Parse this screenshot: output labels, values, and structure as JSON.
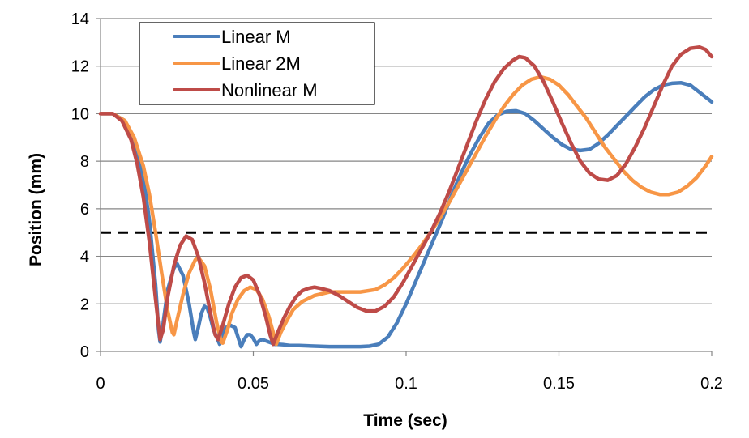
{
  "chart_data": {
    "type": "line",
    "title": "",
    "xlabel": "Time (sec)",
    "ylabel": "Position (mm)",
    "xlim": [
      0,
      0.2
    ],
    "ylim": [
      0,
      14
    ],
    "xticks": [
      0,
      0.05,
      0.1,
      0.15,
      0.2
    ],
    "xtick_labels": [
      "0",
      "0.05",
      "0.1",
      "0.15",
      "0.2"
    ],
    "yticks": [
      0,
      2,
      4,
      6,
      8,
      10,
      12,
      14
    ],
    "ytick_labels": [
      "0",
      "2",
      "4",
      "6",
      "8",
      "10",
      "12",
      "14"
    ],
    "grid": "horizontal",
    "legend_position": "top-left",
    "reference_line": {
      "y": 5,
      "style": "dashed",
      "color": "#000000"
    },
    "series": [
      {
        "name": "Linear M",
        "color": "#4A7EBB",
        "points": [
          [
            0,
            10
          ],
          [
            0.004,
            10
          ],
          [
            0.008,
            9.7
          ],
          [
            0.011,
            8.8
          ],
          [
            0.014,
            7.3
          ],
          [
            0.016,
            5.5
          ],
          [
            0.018,
            2.8
          ],
          [
            0.019,
            0.9
          ],
          [
            0.0195,
            0.4
          ],
          [
            0.0205,
            1.2
          ],
          [
            0.022,
            2.6
          ],
          [
            0.024,
            3.5
          ],
          [
            0.025,
            3.7
          ],
          [
            0.027,
            3.2
          ],
          [
            0.029,
            2.0
          ],
          [
            0.0305,
            0.8
          ],
          [
            0.031,
            0.5
          ],
          [
            0.032,
            1.0
          ],
          [
            0.033,
            1.6
          ],
          [
            0.034,
            1.9
          ],
          [
            0.035,
            1.8
          ],
          [
            0.036,
            1.4
          ],
          [
            0.037,
            0.9
          ],
          [
            0.038,
            0.6
          ],
          [
            0.039,
            0.3
          ],
          [
            0.04,
            0.7
          ],
          [
            0.041,
            1.0
          ],
          [
            0.0425,
            1.1
          ],
          [
            0.044,
            1.0
          ],
          [
            0.045,
            0.6
          ],
          [
            0.046,
            0.2
          ],
          [
            0.047,
            0.5
          ],
          [
            0.048,
            0.7
          ],
          [
            0.049,
            0.7
          ],
          [
            0.05,
            0.55
          ],
          [
            0.051,
            0.3
          ],
          [
            0.052,
            0.45
          ],
          [
            0.053,
            0.5
          ],
          [
            0.054,
            0.45
          ],
          [
            0.055,
            0.4
          ],
          [
            0.056,
            0.35
          ],
          [
            0.057,
            0.3
          ],
          [
            0.058,
            0.3
          ],
          [
            0.06,
            0.28
          ],
          [
            0.062,
            0.25
          ],
          [
            0.065,
            0.25
          ],
          [
            0.07,
            0.22
          ],
          [
            0.075,
            0.2
          ],
          [
            0.08,
            0.2
          ],
          [
            0.085,
            0.2
          ],
          [
            0.088,
            0.22
          ],
          [
            0.091,
            0.3
          ],
          [
            0.094,
            0.6
          ],
          [
            0.097,
            1.2
          ],
          [
            0.1,
            2.0
          ],
          [
            0.103,
            2.9
          ],
          [
            0.106,
            3.8
          ],
          [
            0.109,
            4.7
          ],
          [
            0.112,
            5.6
          ],
          [
            0.115,
            6.6
          ],
          [
            0.118,
            7.5
          ],
          [
            0.121,
            8.3
          ],
          [
            0.124,
            9.0
          ],
          [
            0.127,
            9.6
          ],
          [
            0.13,
            9.95
          ],
          [
            0.133,
            10.1
          ],
          [
            0.136,
            10.12
          ],
          [
            0.139,
            10.0
          ],
          [
            0.142,
            9.7
          ],
          [
            0.145,
            9.35
          ],
          [
            0.148,
            9.0
          ],
          [
            0.151,
            8.7
          ],
          [
            0.154,
            8.5
          ],
          [
            0.157,
            8.45
          ],
          [
            0.16,
            8.5
          ],
          [
            0.163,
            8.75
          ],
          [
            0.166,
            9.1
          ],
          [
            0.169,
            9.5
          ],
          [
            0.172,
            9.9
          ],
          [
            0.175,
            10.3
          ],
          [
            0.178,
            10.7
          ],
          [
            0.181,
            11.0
          ],
          [
            0.184,
            11.2
          ],
          [
            0.187,
            11.28
          ],
          [
            0.19,
            11.3
          ],
          [
            0.193,
            11.2
          ],
          [
            0.196,
            10.9
          ],
          [
            0.2,
            10.5
          ]
        ]
      },
      {
        "name": "Linear 2M",
        "color": "#F79646",
        "points": [
          [
            0,
            10
          ],
          [
            0.004,
            10
          ],
          [
            0.008,
            9.7
          ],
          [
            0.011,
            9.0
          ],
          [
            0.014,
            7.8
          ],
          [
            0.016,
            6.6
          ],
          [
            0.018,
            5.0
          ],
          [
            0.02,
            3.3
          ],
          [
            0.022,
            1.7
          ],
          [
            0.0235,
            0.8
          ],
          [
            0.024,
            0.7
          ],
          [
            0.025,
            1.3
          ],
          [
            0.027,
            2.4
          ],
          [
            0.029,
            3.3
          ],
          [
            0.031,
            3.85
          ],
          [
            0.032,
            3.95
          ],
          [
            0.034,
            3.6
          ],
          [
            0.036,
            2.6
          ],
          [
            0.038,
            1.2
          ],
          [
            0.0395,
            0.4
          ],
          [
            0.04,
            0.35
          ],
          [
            0.0415,
            0.9
          ],
          [
            0.043,
            1.6
          ],
          [
            0.045,
            2.2
          ],
          [
            0.047,
            2.55
          ],
          [
            0.049,
            2.7
          ],
          [
            0.051,
            2.6
          ],
          [
            0.053,
            2.2
          ],
          [
            0.055,
            1.5
          ],
          [
            0.0565,
            0.8
          ],
          [
            0.0575,
            0.3
          ],
          [
            0.059,
            0.8
          ],
          [
            0.061,
            1.3
          ],
          [
            0.063,
            1.75
          ],
          [
            0.066,
            2.1
          ],
          [
            0.07,
            2.35
          ],
          [
            0.075,
            2.5
          ],
          [
            0.08,
            2.5
          ],
          [
            0.085,
            2.5
          ],
          [
            0.09,
            2.6
          ],
          [
            0.093,
            2.8
          ],
          [
            0.096,
            3.1
          ],
          [
            0.099,
            3.5
          ],
          [
            0.102,
            3.95
          ],
          [
            0.105,
            4.45
          ],
          [
            0.108,
            5.0
          ],
          [
            0.111,
            5.6
          ],
          [
            0.114,
            6.25
          ],
          [
            0.117,
            6.95
          ],
          [
            0.12,
            7.65
          ],
          [
            0.123,
            8.35
          ],
          [
            0.126,
            9.05
          ],
          [
            0.129,
            9.7
          ],
          [
            0.132,
            10.3
          ],
          [
            0.135,
            10.8
          ],
          [
            0.138,
            11.2
          ],
          [
            0.141,
            11.45
          ],
          [
            0.144,
            11.55
          ],
          [
            0.147,
            11.45
          ],
          [
            0.15,
            11.2
          ],
          [
            0.153,
            10.8
          ],
          [
            0.156,
            10.3
          ],
          [
            0.159,
            9.8
          ],
          [
            0.162,
            9.2
          ],
          [
            0.165,
            8.6
          ],
          [
            0.168,
            8.1
          ],
          [
            0.171,
            7.6
          ],
          [
            0.174,
            7.2
          ],
          [
            0.177,
            6.9
          ],
          [
            0.18,
            6.7
          ],
          [
            0.183,
            6.6
          ],
          [
            0.186,
            6.6
          ],
          [
            0.189,
            6.7
          ],
          [
            0.192,
            6.95
          ],
          [
            0.195,
            7.3
          ],
          [
            0.198,
            7.8
          ],
          [
            0.2,
            8.2
          ]
        ]
      },
      {
        "name": "Nonlinear M",
        "color": "#BE4B48",
        "points": [
          [
            0,
            10
          ],
          [
            0.004,
            10
          ],
          [
            0.007,
            9.7
          ],
          [
            0.01,
            8.9
          ],
          [
            0.012,
            7.9
          ],
          [
            0.014,
            6.5
          ],
          [
            0.016,
            4.6
          ],
          [
            0.018,
            2.2
          ],
          [
            0.0195,
            0.5
          ],
          [
            0.0205,
            0.9
          ],
          [
            0.022,
            2.3
          ],
          [
            0.024,
            3.6
          ],
          [
            0.026,
            4.45
          ],
          [
            0.028,
            4.85
          ],
          [
            0.03,
            4.7
          ],
          [
            0.032,
            4.0
          ],
          [
            0.034,
            2.9
          ],
          [
            0.036,
            1.6
          ],
          [
            0.0375,
            0.7
          ],
          [
            0.0385,
            0.5
          ],
          [
            0.04,
            1.1
          ],
          [
            0.042,
            2.0
          ],
          [
            0.044,
            2.7
          ],
          [
            0.046,
            3.1
          ],
          [
            0.048,
            3.2
          ],
          [
            0.05,
            3.0
          ],
          [
            0.052,
            2.4
          ],
          [
            0.054,
            1.5
          ],
          [
            0.0555,
            0.7
          ],
          [
            0.0565,
            0.3
          ],
          [
            0.058,
            0.8
          ],
          [
            0.06,
            1.4
          ],
          [
            0.062,
            1.9
          ],
          [
            0.064,
            2.3
          ],
          [
            0.066,
            2.55
          ],
          [
            0.068,
            2.65
          ],
          [
            0.07,
            2.7
          ],
          [
            0.072,
            2.65
          ],
          [
            0.075,
            2.55
          ],
          [
            0.078,
            2.35
          ],
          [
            0.081,
            2.1
          ],
          [
            0.084,
            1.85
          ],
          [
            0.087,
            1.7
          ],
          [
            0.09,
            1.7
          ],
          [
            0.093,
            1.9
          ],
          [
            0.096,
            2.3
          ],
          [
            0.099,
            2.9
          ],
          [
            0.102,
            3.6
          ],
          [
            0.105,
            4.3
          ],
          [
            0.108,
            5.0
          ],
          [
            0.111,
            5.8
          ],
          [
            0.114,
            6.7
          ],
          [
            0.117,
            7.7
          ],
          [
            0.12,
            8.7
          ],
          [
            0.123,
            9.7
          ],
          [
            0.126,
            10.6
          ],
          [
            0.129,
            11.35
          ],
          [
            0.132,
            11.9
          ],
          [
            0.135,
            12.25
          ],
          [
            0.137,
            12.4
          ],
          [
            0.139,
            12.35
          ],
          [
            0.142,
            12.0
          ],
          [
            0.145,
            11.35
          ],
          [
            0.148,
            10.5
          ],
          [
            0.151,
            9.6
          ],
          [
            0.154,
            8.75
          ],
          [
            0.157,
            8.0
          ],
          [
            0.16,
            7.5
          ],
          [
            0.163,
            7.25
          ],
          [
            0.166,
            7.2
          ],
          [
            0.169,
            7.4
          ],
          [
            0.172,
            7.9
          ],
          [
            0.175,
            8.6
          ],
          [
            0.178,
            9.4
          ],
          [
            0.181,
            10.3
          ],
          [
            0.184,
            11.2
          ],
          [
            0.187,
            12.0
          ],
          [
            0.19,
            12.5
          ],
          [
            0.193,
            12.75
          ],
          [
            0.196,
            12.8
          ],
          [
            0.198,
            12.7
          ],
          [
            0.2,
            12.4
          ]
        ]
      }
    ]
  }
}
